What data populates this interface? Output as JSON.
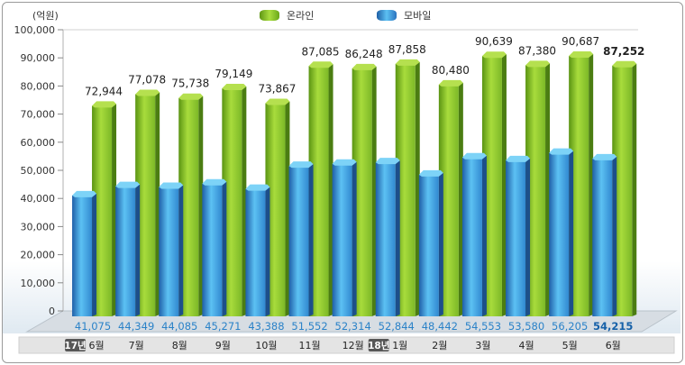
{
  "chart_data": {
    "type": "bar",
    "unit_label": "(억원)",
    "y_ticks": [
      "100,000",
      "90,000",
      "80,000",
      "70,000",
      "60,000",
      "50,000",
      "40,000",
      "30,000",
      "20,000",
      "10,000",
      "0"
    ],
    "ylim": [
      0,
      100000
    ],
    "legend_position": "top",
    "categories": [
      "6월",
      "7월",
      "8월",
      "9월",
      "10월",
      "11월",
      "12월",
      "1월",
      "2월",
      "3월",
      "4월",
      "5월",
      "6월"
    ],
    "year_badges": [
      {
        "index": 0,
        "text": "17년"
      },
      {
        "index": 7,
        "text": "18년"
      }
    ],
    "series": [
      {
        "name": "온라인",
        "color": "#8cc63f",
        "values": [
          72944,
          77078,
          75738,
          79149,
          73867,
          87085,
          86248,
          87858,
          80480,
          90639,
          87380,
          90687,
          87252
        ],
        "labels": [
          "72,944",
          "77,078",
          "75,738",
          "79,149",
          "73,867",
          "87,085",
          "86,248",
          "87,858",
          "80,480",
          "90,639",
          "87,380",
          "90,687",
          "87,252"
        ]
      },
      {
        "name": "모바일",
        "color": "#3a9ee0",
        "values": [
          41075,
          44349,
          44085,
          45271,
          43388,
          51552,
          52314,
          52844,
          48442,
          54553,
          53580,
          56205,
          54215
        ],
        "labels": [
          "41,075",
          "44,349",
          "44,085",
          "45,271",
          "43,388",
          "51,552",
          "52,314",
          "52,844",
          "48,442",
          "54,553",
          "53,580",
          "56,205",
          "54,215"
        ]
      }
    ],
    "highlight_last": true
  }
}
